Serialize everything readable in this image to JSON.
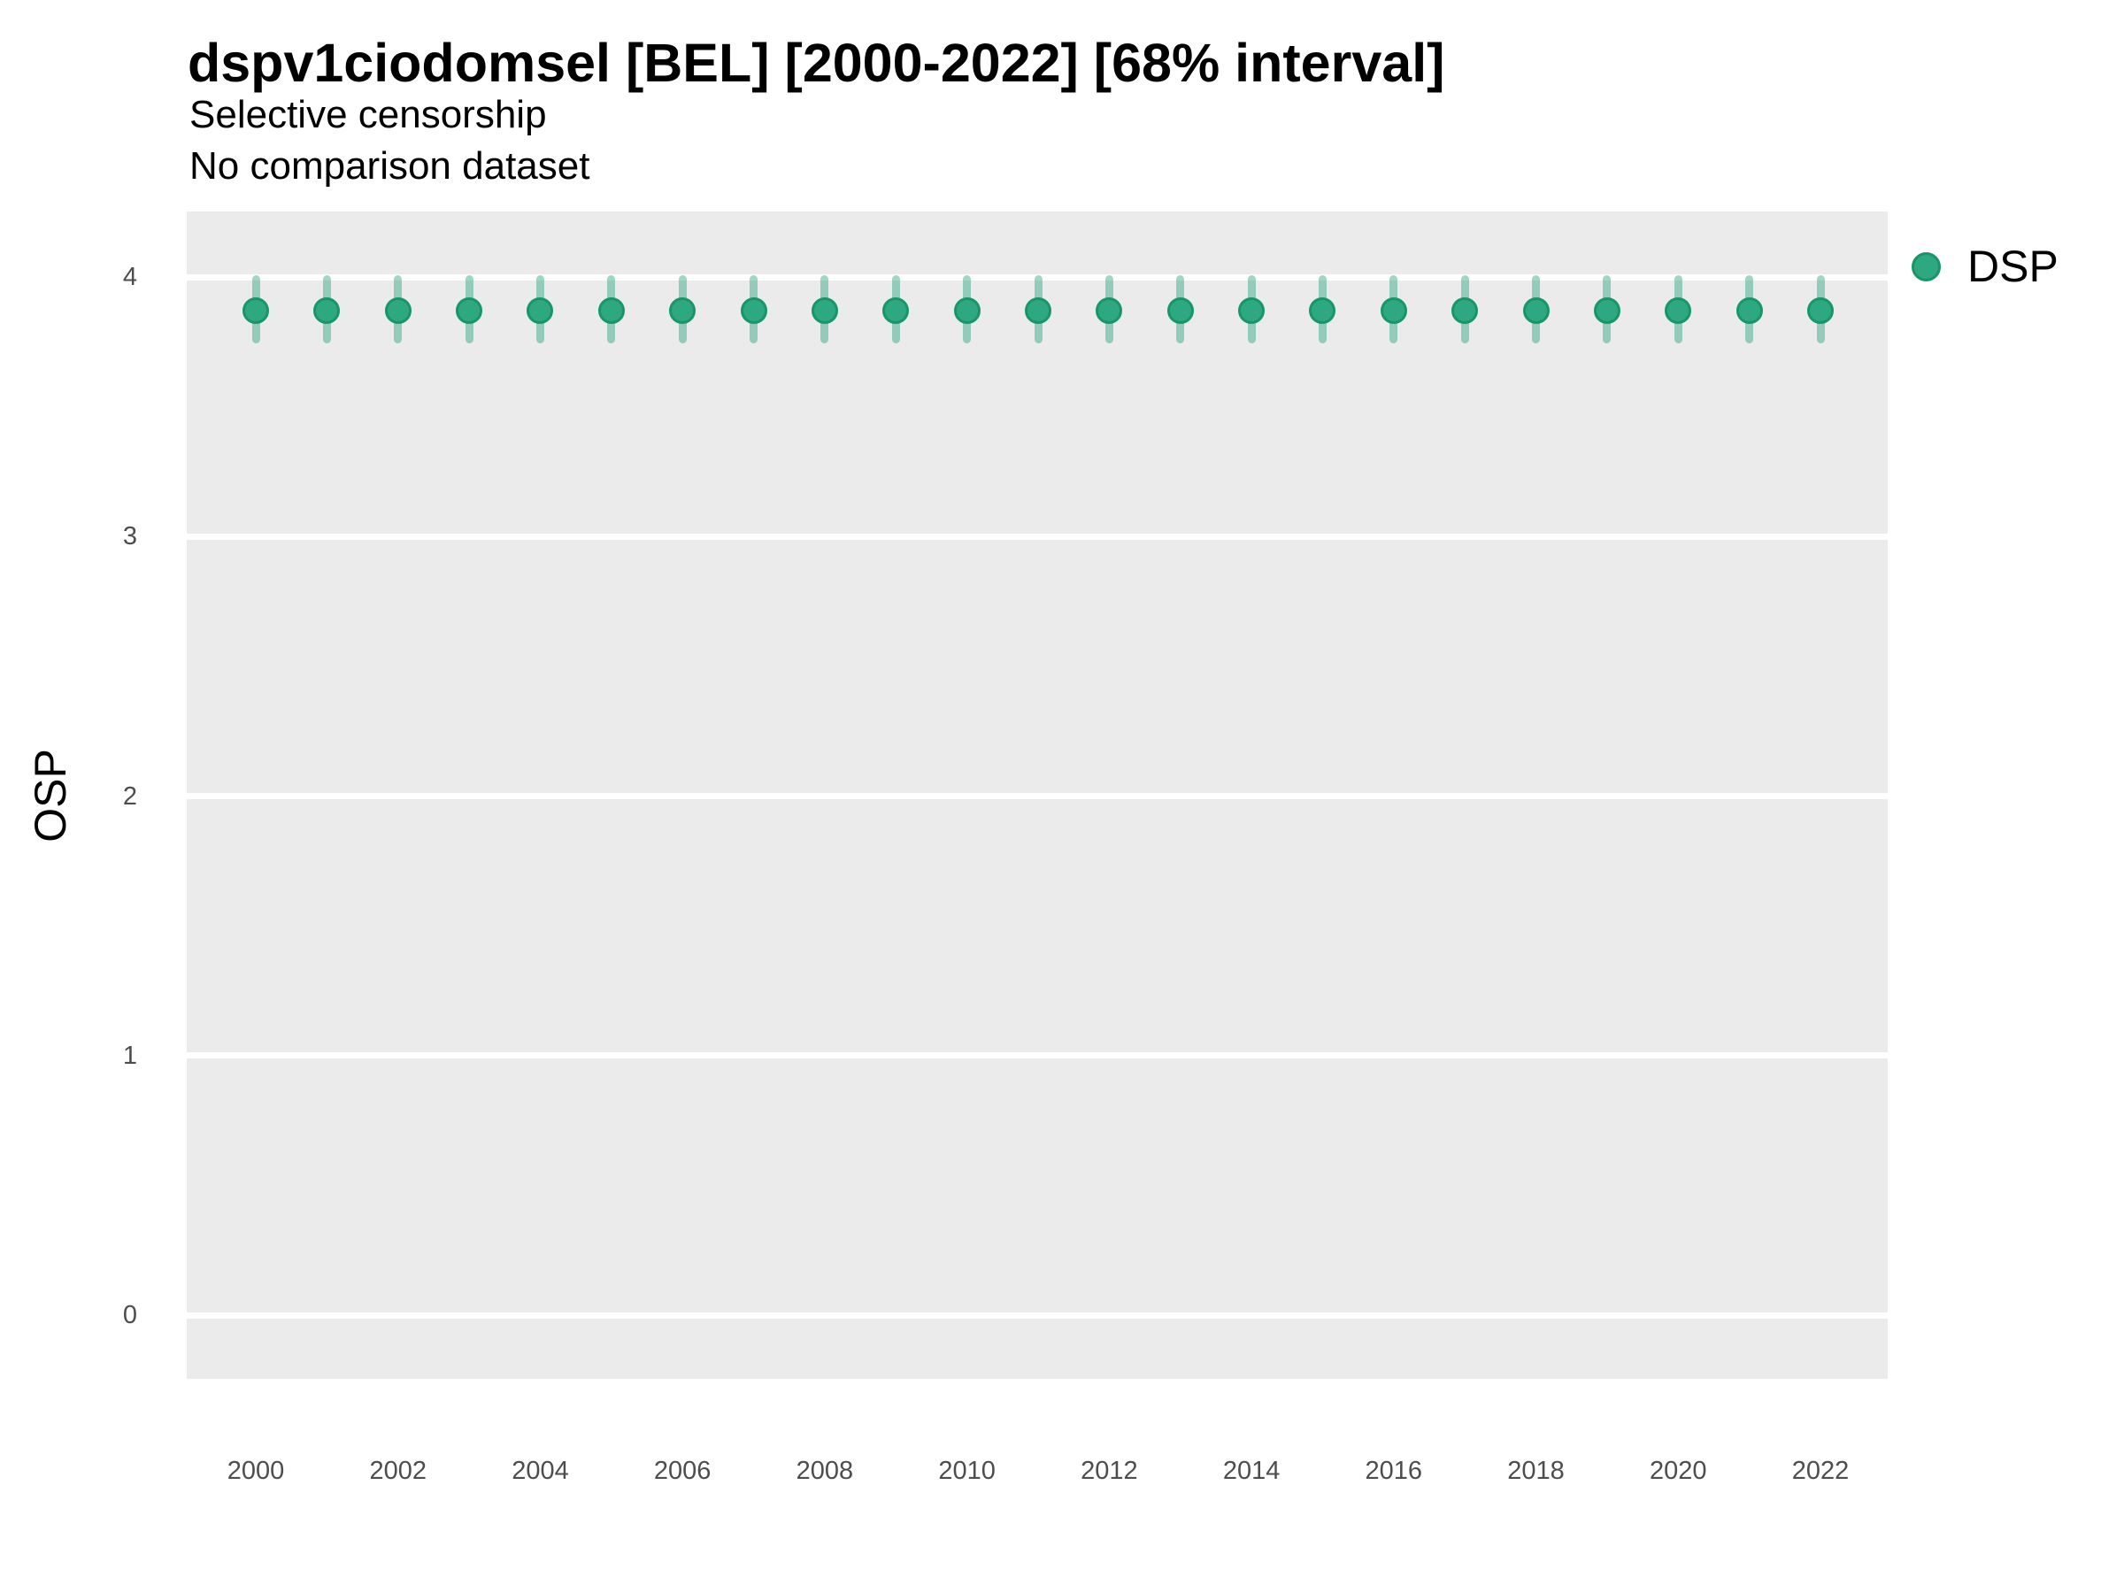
{
  "header": {
    "title": "dspv1ciodomsel [BEL] [2000-2022] [68% interval]",
    "subtitle1": "Selective censorship",
    "subtitle2": "No comparison dataset"
  },
  "axes": {
    "y": {
      "title": "OSP",
      "tick_values": [
        4,
        3,
        2,
        1,
        0
      ],
      "tick_labels": [
        "4",
        "3",
        "2",
        "1",
        "0"
      ]
    },
    "x": {
      "title": "",
      "tick_values": [
        2000,
        2002,
        2004,
        2006,
        2008,
        2010,
        2012,
        2014,
        2016,
        2018,
        2020,
        2022
      ],
      "tick_labels": [
        "2000",
        "2002",
        "2004",
        "2006",
        "2008",
        "2010",
        "2012",
        "2014",
        "2016",
        "2018",
        "2020",
        "2022"
      ]
    }
  },
  "legend": {
    "position": "right",
    "items": [
      {
        "label": "DSP",
        "color": "#2DA880"
      }
    ]
  },
  "colors": {
    "background": "#FFFFFF",
    "panel_bg": "#EBEBEB",
    "gridline": "#FFFFFF",
    "point_fill": "#2DA880",
    "point_stroke": "#169669",
    "interval_bar": "rgba(27,158,119,0.42)",
    "tick_text": "#4D4D4D"
  },
  "chart_data": {
    "type": "scatter",
    "title": "dspv1ciodomsel [BEL] [2000-2022] [68% interval]",
    "subtitle": [
      "Selective censorship",
      "No comparison dataset"
    ],
    "xlabel": "",
    "ylabel": "OSP",
    "xlim": [
      1999,
      2023
    ],
    "ylim": [
      -0.25,
      4.25
    ],
    "grid": "major-horizontal-only",
    "legend_position": "right",
    "interval_label": "68% interval",
    "series": [
      {
        "name": "DSP",
        "x": [
          2000,
          2001,
          2002,
          2003,
          2004,
          2005,
          2006,
          2007,
          2008,
          2009,
          2010,
          2011,
          2012,
          2013,
          2014,
          2015,
          2016,
          2017,
          2018,
          2019,
          2020,
          2021,
          2022
        ],
        "y": [
          3.87,
          3.87,
          3.87,
          3.87,
          3.87,
          3.87,
          3.87,
          3.87,
          3.87,
          3.87,
          3.87,
          3.87,
          3.87,
          3.87,
          3.87,
          3.87,
          3.87,
          3.87,
          3.87,
          3.87,
          3.87,
          3.87,
          3.87
        ],
        "y_low": [
          3.75,
          3.75,
          3.75,
          3.75,
          3.75,
          3.75,
          3.75,
          3.75,
          3.75,
          3.75,
          3.75,
          3.75,
          3.75,
          3.75,
          3.75,
          3.75,
          3.75,
          3.75,
          3.75,
          3.75,
          3.75,
          3.75,
          3.75
        ],
        "y_high": [
          4.0,
          4.0,
          4.0,
          4.0,
          4.0,
          4.0,
          4.0,
          4.0,
          4.0,
          4.0,
          4.0,
          4.0,
          4.0,
          4.0,
          4.0,
          4.0,
          4.0,
          4.0,
          4.0,
          4.0,
          4.0,
          4.0,
          4.0
        ]
      }
    ]
  }
}
